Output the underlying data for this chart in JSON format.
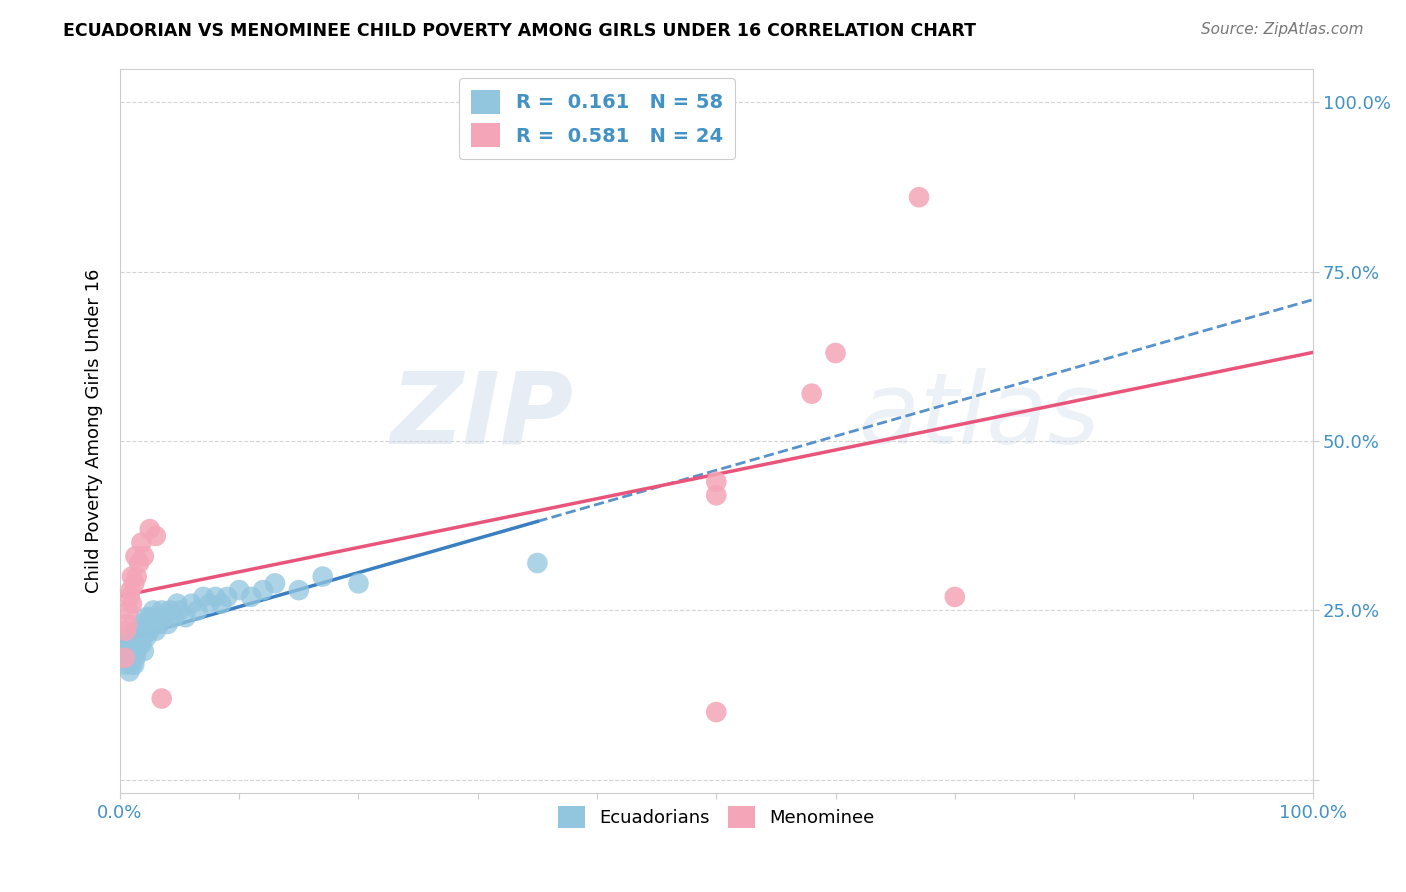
{
  "title": "ECUADORIAN VS MENOMINEE CHILD POVERTY AMONG GIRLS UNDER 16 CORRELATION CHART",
  "source": "Source: ZipAtlas.com",
  "ylabel": "Child Poverty Among Girls Under 16",
  "watermark_zip": "ZIP",
  "watermark_atlas": "atlas",
  "legend_blue_r": "0.161",
  "legend_blue_n": "58",
  "legend_pink_r": "0.581",
  "legend_pink_n": "24",
  "blue_color": "#92c5de",
  "pink_color": "#f4a6b8",
  "blue_line_color": "#3a7fc1",
  "pink_line_color": "#e8547a",
  "blue_scatter": [
    [
      0.005,
      0.17
    ],
    [
      0.005,
      0.19
    ],
    [
      0.006,
      0.2
    ],
    [
      0.007,
      0.21
    ],
    [
      0.008,
      0.16
    ],
    [
      0.008,
      0.18
    ],
    [
      0.009,
      0.19
    ],
    [
      0.01,
      0.17
    ],
    [
      0.01,
      0.2
    ],
    [
      0.011,
      0.18
    ],
    [
      0.011,
      0.19
    ],
    [
      0.012,
      0.17
    ],
    [
      0.012,
      0.2
    ],
    [
      0.013,
      0.18
    ],
    [
      0.013,
      0.22
    ],
    [
      0.014,
      0.19
    ],
    [
      0.014,
      0.21
    ],
    [
      0.015,
      0.2
    ],
    [
      0.015,
      0.22
    ],
    [
      0.016,
      0.21
    ],
    [
      0.017,
      0.22
    ],
    [
      0.018,
      0.2
    ],
    [
      0.018,
      0.23
    ],
    [
      0.019,
      0.21
    ],
    [
      0.02,
      0.19
    ],
    [
      0.02,
      0.22
    ],
    [
      0.022,
      0.21
    ],
    [
      0.022,
      0.24
    ],
    [
      0.025,
      0.22
    ],
    [
      0.025,
      0.24
    ],
    [
      0.027,
      0.23
    ],
    [
      0.028,
      0.25
    ],
    [
      0.03,
      0.22
    ],
    [
      0.032,
      0.24
    ],
    [
      0.033,
      0.23
    ],
    [
      0.035,
      0.25
    ],
    [
      0.037,
      0.24
    ],
    [
      0.04,
      0.23
    ],
    [
      0.042,
      0.25
    ],
    [
      0.045,
      0.24
    ],
    [
      0.048,
      0.26
    ],
    [
      0.05,
      0.25
    ],
    [
      0.055,
      0.24
    ],
    [
      0.06,
      0.26
    ],
    [
      0.065,
      0.25
    ],
    [
      0.07,
      0.27
    ],
    [
      0.075,
      0.26
    ],
    [
      0.08,
      0.27
    ],
    [
      0.085,
      0.26
    ],
    [
      0.09,
      0.27
    ],
    [
      0.1,
      0.28
    ],
    [
      0.11,
      0.27
    ],
    [
      0.12,
      0.28
    ],
    [
      0.13,
      0.29
    ],
    [
      0.15,
      0.28
    ],
    [
      0.17,
      0.3
    ],
    [
      0.2,
      0.29
    ],
    [
      0.35,
      0.32
    ]
  ],
  "pink_scatter": [
    [
      0.004,
      0.18
    ],
    [
      0.005,
      0.22
    ],
    [
      0.006,
      0.23
    ],
    [
      0.007,
      0.25
    ],
    [
      0.008,
      0.27
    ],
    [
      0.009,
      0.28
    ],
    [
      0.01,
      0.26
    ],
    [
      0.01,
      0.3
    ],
    [
      0.012,
      0.29
    ],
    [
      0.013,
      0.33
    ],
    [
      0.014,
      0.3
    ],
    [
      0.016,
      0.32
    ],
    [
      0.018,
      0.35
    ],
    [
      0.02,
      0.33
    ],
    [
      0.025,
      0.37
    ],
    [
      0.03,
      0.36
    ],
    [
      0.035,
      0.12
    ],
    [
      0.5,
      0.42
    ],
    [
      0.5,
      0.44
    ],
    [
      0.58,
      0.57
    ],
    [
      0.6,
      0.63
    ],
    [
      0.67,
      0.86
    ],
    [
      0.7,
      0.27
    ],
    [
      0.5,
      0.1
    ]
  ],
  "xlim": [
    0,
    1.0
  ],
  "ylim": [
    -0.02,
    1.05
  ],
  "figsize": [
    14.06,
    8.92
  ],
  "dpi": 100,
  "background_color": "#ffffff",
  "grid_color": "#d0d0d0",
  "title_color": "#000000",
  "source_color": "#777777",
  "tick_label_color": "#4292c6",
  "legend_text_color": "#4292c6"
}
